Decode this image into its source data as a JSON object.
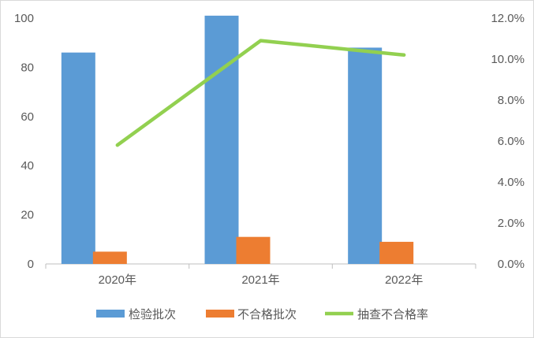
{
  "chart_data": {
    "type": "bar",
    "title": "",
    "categories": [
      "2020年",
      "2021年",
      "2022年"
    ],
    "series": [
      {
        "name": "检验批次",
        "kind": "bar",
        "axis": "left",
        "color": "#5b9bd5",
        "values": [
          86,
          101,
          88
        ]
      },
      {
        "name": "不合格批次",
        "kind": "bar",
        "axis": "left",
        "color": "#ed7d31",
        "values": [
          5,
          11,
          9
        ]
      },
      {
        "name": "抽查不合格率",
        "kind": "line",
        "axis": "right",
        "color": "#92d050",
        "values": [
          0.058,
          0.109,
          0.102
        ]
      }
    ],
    "y_left": {
      "min": 0,
      "max": 100,
      "ticks": [
        "0",
        "20",
        "40",
        "60",
        "80",
        "100"
      ]
    },
    "y_right": {
      "min": 0,
      "max": 0.12,
      "ticks": [
        "0.0%",
        "2.0%",
        "4.0%",
        "6.0%",
        "8.0%",
        "10.0%",
        "12.0%"
      ]
    },
    "grid": false,
    "legend": "bottom"
  }
}
